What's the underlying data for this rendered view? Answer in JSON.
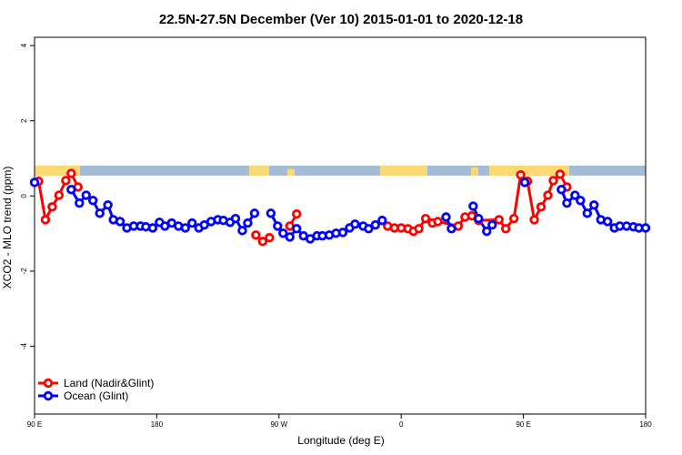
{
  "chart_data": {
    "type": "line",
    "title": "22.5N-27.5N December (Ver 10)   2015-01-01 to 2020-12-18",
    "x_label": "Longitude (deg E)",
    "y_label": "XCO2 - MLO trend (ppm)",
    "xlim": [
      90,
      540
    ],
    "ylim": [
      -5.8,
      4.22
    ],
    "xticks": [
      {
        "value": 90,
        "label": "90 E"
      },
      180,
      {
        "value": 270,
        "label": "90 W"
      },
      {
        "value": 360,
        "label": "0"
      },
      {
        "value": 450,
        "label": "90 E"
      },
      {
        "value": 540,
        "label": "180"
      }
    ],
    "yticks": [
      -4,
      -2,
      0,
      2,
      4
    ],
    "legend": "bottom-left",
    "series": [
      {
        "name": "Land (Nadir&Glint)",
        "color": "#ff0000",
        "x": [
          93,
          98,
          103,
          108,
          113,
          117,
          122,
          null,
          253,
          258,
          263,
          null,
          278,
          283,
          null,
          350,
          355,
          360,
          365,
          369,
          373,
          378,
          383,
          387,
          402,
          407,
          412,
          417,
          432,
          437,
          443,
          448,
          453,
          458,
          463,
          468,
          472,
          477,
          482
        ],
        "values": [
          0.39,
          -0.63,
          -0.29,
          0.02,
          0.41,
          0.6,
          0.24,
          null,
          -1.04,
          -1.21,
          -1.11,
          null,
          -0.8,
          -0.48,
          null,
          -0.8,
          -0.85,
          -0.85,
          -0.87,
          -0.94,
          -0.87,
          -0.6,
          -0.72,
          -0.68,
          -0.8,
          -0.56,
          -0.53,
          -0.65,
          -0.63,
          -0.87,
          -0.6,
          0.56,
          0.39,
          -0.63,
          -0.29,
          0.02,
          0.41,
          0.58,
          0.24
        ]
      },
      {
        "name": "Ocean (Glint)",
        "color": "#0000ff",
        "x": [
          90,
          null,
          117,
          123,
          128,
          133,
          138,
          144,
          148,
          153,
          158,
          163,
          168,
          172,
          177,
          182,
          186,
          191,
          196,
          201,
          206,
          211,
          215,
          220,
          225,
          229,
          234,
          238,
          243,
          247,
          252,
          null,
          264,
          269,
          273,
          278,
          283,
          288,
          293,
          298,
          302,
          307,
          312,
          317,
          322,
          326,
          332,
          336,
          341,
          346,
          null,
          393,
          397,
          null,
          413,
          417,
          423,
          427,
          null,
          451,
          null,
          478,
          482,
          488,
          492,
          497,
          502,
          507,
          512,
          517,
          521,
          526,
          531,
          535,
          540
        ],
        "values": [
          0.36,
          null,
          0.17,
          -0.19,
          0.02,
          -0.12,
          -0.46,
          -0.24,
          -0.63,
          -0.68,
          -0.85,
          -0.8,
          -0.8,
          -0.82,
          -0.85,
          -0.7,
          -0.8,
          -0.72,
          -0.8,
          -0.85,
          -0.72,
          -0.85,
          -0.77,
          -0.68,
          -0.63,
          -0.65,
          -0.7,
          -0.6,
          -0.92,
          -0.72,
          -0.46,
          null,
          -0.46,
          -0.8,
          -0.99,
          -1.09,
          -0.87,
          -1.06,
          -1.14,
          -1.06,
          -1.06,
          -1.04,
          -0.99,
          -0.97,
          -0.85,
          -0.75,
          -0.8,
          -0.87,
          -0.77,
          -0.65,
          null,
          -0.56,
          -0.87,
          null,
          -0.27,
          -0.6,
          -0.94,
          -0.77,
          null,
          0.36,
          null,
          0.17,
          -0.19,
          0.02,
          -0.12,
          -0.46,
          -0.24,
          -0.63,
          -0.68,
          -0.85,
          -0.8,
          -0.8,
          -0.82,
          -0.85,
          -0.85
        ]
      }
    ]
  }
}
